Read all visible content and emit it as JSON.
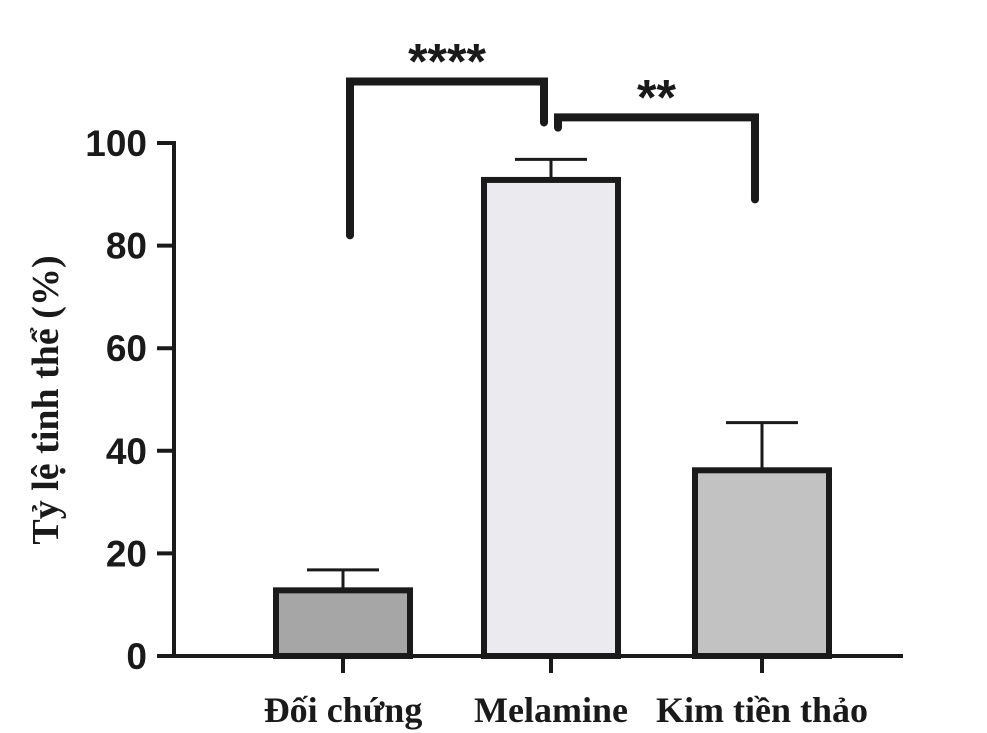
{
  "chart_data": {
    "type": "bar",
    "title": "",
    "xlabel": "",
    "ylabel": "Tỷ lệ tinh thể (%)",
    "ylim": [
      0,
      100
    ],
    "yticks": [
      "0",
      "20",
      "40",
      "60",
      "80",
      "100"
    ],
    "categories": [
      "Đối chứng",
      "Melamine",
      "Kim tiền thảo"
    ],
    "values": [
      12.8,
      92.8,
      36.2
    ],
    "errors": [
      4,
      4,
      9.3
    ],
    "bar_colors": [
      "#a6a6a6",
      "#ebeaef",
      "#c2c2c2"
    ],
    "edge_color": "#1a1a1a",
    "significance": [
      {
        "label": "****",
        "from": 0,
        "to": 1,
        "level": 112,
        "left_drop": 82,
        "right_drop": 104
      },
      {
        "label": "**",
        "from": 1,
        "to": 2,
        "level": 105,
        "left_drop": 103,
        "right_drop": 89
      }
    ],
    "grid": false,
    "legend": "none"
  }
}
